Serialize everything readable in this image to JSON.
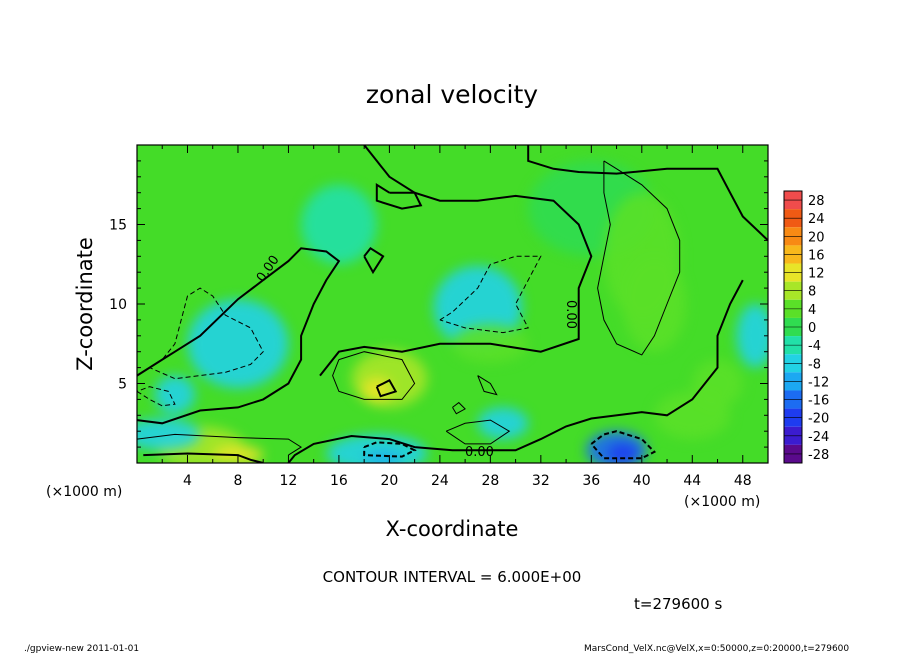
{
  "chart_data": {
    "type": "heatmap",
    "title": "zonal velocity",
    "xlabel": "X-coordinate",
    "ylabel": "Z-coordinate",
    "x_unit": "(×1000 m)",
    "z_unit": "(×1000 m)",
    "xlim": [
      0,
      50
    ],
    "ylim": [
      0,
      20
    ],
    "x_ticks": [
      4,
      8,
      12,
      16,
      20,
      24,
      28,
      32,
      36,
      40,
      44,
      48
    ],
    "y_ticks": [
      5,
      10,
      15
    ],
    "colorbar": {
      "labels": [
        28,
        24,
        20,
        16,
        12,
        8,
        4,
        0,
        -4,
        -8,
        -12,
        -16,
        -20,
        -24,
        -28
      ],
      "range": [
        -30,
        30
      ]
    },
    "contour_interval_text": "CONTOUR INTERVAL = 6.000E+00",
    "contour_labels": [
      "0.00",
      "0.00",
      "0.00"
    ],
    "time_text": "t=279600 s"
  },
  "footer": {
    "left": "./gpview-new  2011-01-01",
    "right": "MarsCond_VelX.nc@VelX,x=0:50000,z=0:20000,t=279600"
  }
}
